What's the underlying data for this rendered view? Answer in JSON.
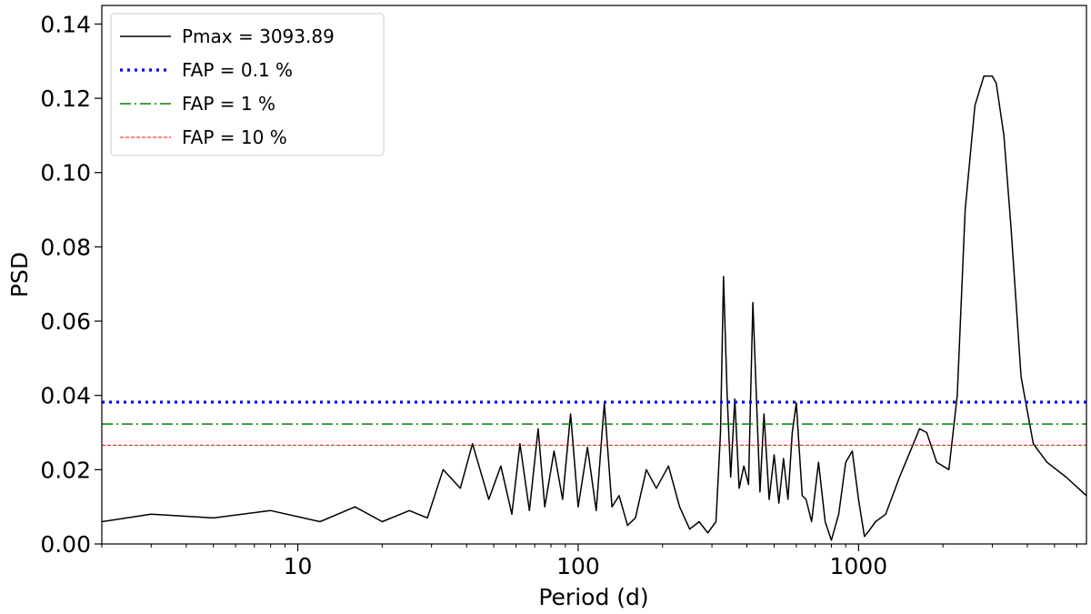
{
  "chart_data": {
    "type": "line",
    "xlabel": "Period (d)",
    "ylabel": "PSD",
    "x_scale": "log",
    "xlim": [
      2,
      6500
    ],
    "ylim": [
      0,
      0.145
    ],
    "x_ticks": [
      10,
      100,
      1000
    ],
    "x_tick_labels": [
      "10",
      "100",
      "1000"
    ],
    "y_ticks": [
      0.0,
      0.02,
      0.04,
      0.06,
      0.08,
      0.1,
      0.12,
      0.14
    ],
    "y_tick_labels": [
      "0.00",
      "0.02",
      "0.04",
      "0.06",
      "0.08",
      "0.10",
      "0.12",
      "0.14"
    ],
    "legend_position": "top-left",
    "grid": false,
    "series": [
      {
        "name": "Pmax = 3093.89",
        "color": "#000000",
        "style": "solid",
        "x": [
          2,
          3,
          5,
          8,
          12,
          16,
          20,
          25,
          29,
          33,
          38,
          42,
          48,
          53,
          58,
          62,
          67,
          72,
          76,
          82,
          88,
          94,
          100,
          108,
          116,
          124,
          132,
          140,
          150,
          160,
          175,
          190,
          210,
          230,
          250,
          270,
          290,
          310,
          322,
          330,
          340,
          350,
          362,
          375,
          390,
          405,
          420,
          432,
          445,
          460,
          480,
          500,
          520,
          540,
          560,
          580,
          600,
          615,
          630,
          650,
          680,
          720,
          760,
          800,
          850,
          900,
          950,
          1000,
          1050,
          1100,
          1150,
          1250,
          1400,
          1550,
          1650,
          1750,
          1900,
          2100,
          2250,
          2400,
          2600,
          2800,
          3000,
          3100,
          3300,
          3500,
          3800,
          4200,
          4700,
          5500,
          6500
        ],
        "y": [
          0.006,
          0.008,
          0.007,
          0.009,
          0.006,
          0.01,
          0.006,
          0.009,
          0.007,
          0.02,
          0.015,
          0.027,
          0.012,
          0.021,
          0.008,
          0.027,
          0.009,
          0.031,
          0.01,
          0.025,
          0.012,
          0.035,
          0.01,
          0.026,
          0.009,
          0.038,
          0.01,
          0.013,
          0.005,
          0.007,
          0.02,
          0.015,
          0.021,
          0.01,
          0.004,
          0.006,
          0.003,
          0.006,
          0.03,
          0.072,
          0.04,
          0.018,
          0.039,
          0.015,
          0.021,
          0.016,
          0.065,
          0.04,
          0.014,
          0.035,
          0.012,
          0.024,
          0.011,
          0.023,
          0.012,
          0.03,
          0.038,
          0.025,
          0.013,
          0.012,
          0.006,
          0.022,
          0.006,
          0.001,
          0.008,
          0.022,
          0.025,
          0.012,
          0.002,
          0.004,
          0.006,
          0.008,
          0.018,
          0.026,
          0.031,
          0.03,
          0.022,
          0.02,
          0.04,
          0.09,
          0.118,
          0.126,
          0.126,
          0.124,
          0.11,
          0.085,
          0.045,
          0.027,
          0.022,
          0.018,
          0.013
        ]
      },
      {
        "name": "FAP = 0.1 %",
        "color": "#0000ff",
        "style": "dotted",
        "y_const": 0.0382
      },
      {
        "name": "FAP = 1 %",
        "color": "#008000",
        "style": "dashdot",
        "y_const": 0.0323
      },
      {
        "name": "FAP = 10 %",
        "color": "#ff0000",
        "style": "dashed",
        "y_const": 0.0266
      }
    ]
  }
}
